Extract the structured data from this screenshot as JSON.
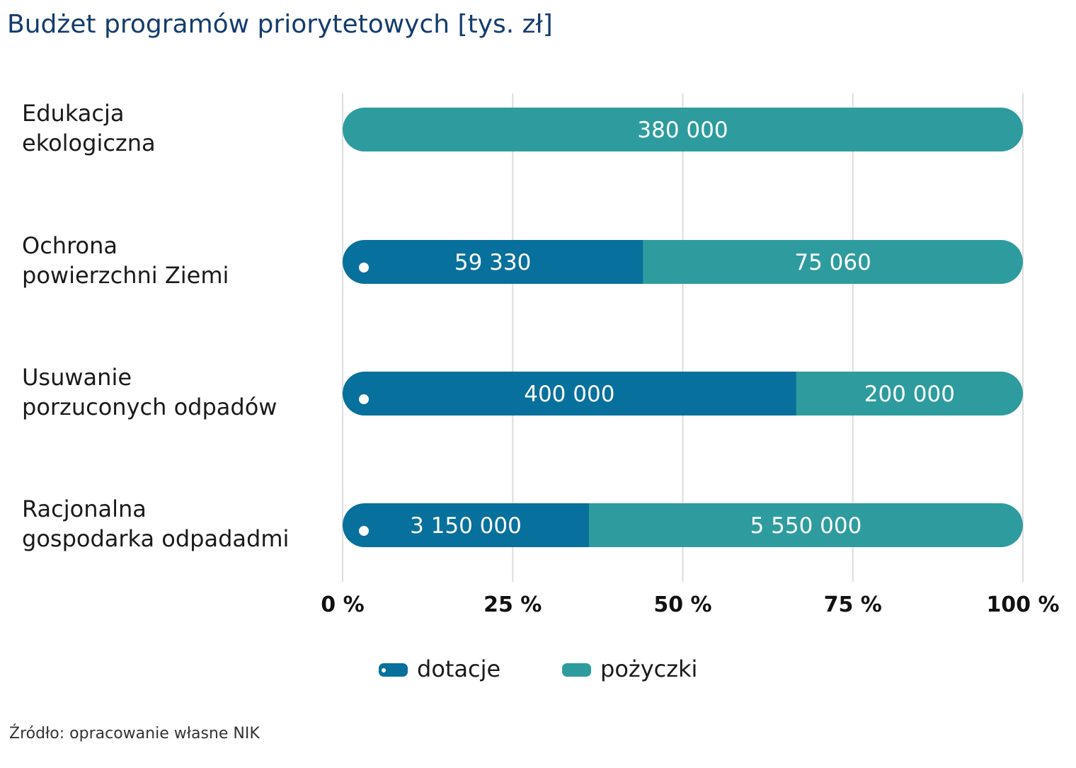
{
  "chart_data": {
    "type": "bar",
    "orientation": "horizontal",
    "stacked": "percent",
    "title": "Budżet programów priorytetowych [tys. zł]",
    "categories": [
      [
        "Edukacja",
        "ekologiczna"
      ],
      [
        "Ochrona",
        "powierzchni Ziemi"
      ],
      [
        "Usuwanie",
        "porzuconych odpadów"
      ],
      [
        "Racjonalna",
        "gospodarka odpadadmi"
      ]
    ],
    "series": [
      {
        "name": "dotacje",
        "color": "#08709c",
        "values": [
          0,
          59330,
          400000,
          3150000
        ],
        "labels": [
          "",
          "59 330",
          "400 000",
          "3 150 000"
        ]
      },
      {
        "name": "pożyczki",
        "color": "#2e9c9e",
        "values": [
          380000,
          75060,
          200000,
          5550000
        ],
        "labels": [
          "380 000",
          "75 060",
          "200 000",
          "5 550 000"
        ]
      }
    ],
    "xlim": [
      0,
      100
    ],
    "xticks": [
      "0 %",
      "25 %",
      "50 %",
      "75 %",
      "100 %"
    ],
    "grid": true,
    "legend": "bottom",
    "source": "Źródło: opracowanie własne NIK"
  }
}
